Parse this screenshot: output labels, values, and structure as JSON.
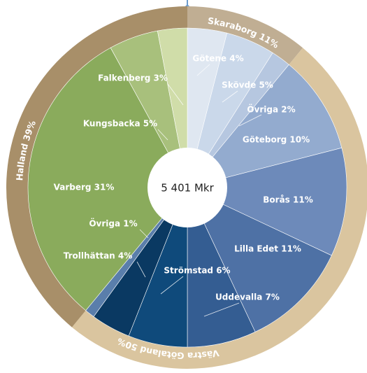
{
  "chart_data": {
    "type": "sunburst",
    "center_label": "5 401 Mkr",
    "inner": {
      "values": [
        4,
        5,
        2,
        10,
        11,
        11,
        7,
        6,
        4,
        1,
        31,
        5,
        3
      ],
      "value_labels": [
        "Götene 4%",
        "Skövde 5%",
        "Övriga 2%",
        "Göteborg 10%",
        "Borås 11%",
        "Lilla Edet 11%",
        "Uddevalla 7%",
        "Strömstad 6%",
        "Trollhättan 4%",
        "Övriga 1%",
        "Varberg 31%",
        "Kungsbacka 5%",
        "Falkenberg 3%"
      ],
      "colors": [
        "#dfe7f1",
        "#cad8ea",
        "#b6c7e0",
        "#93abcf",
        "#6d8aba",
        "#4e71a5",
        "#345d92",
        "#0f4a7b",
        "#0a3962",
        "#5a7eab",
        "#8aab5c",
        "#a8c07c",
        "#d0dda9"
      ]
    },
    "outer": {
      "values": [
        11,
        50,
        39
      ],
      "value_labels": [
        "Skaraborg 11%",
        "Västra Götaland 50%",
        "Halland 39%"
      ],
      "colors": [
        "#c0ae93",
        "#dac59f",
        "#a88f69"
      ]
    }
  }
}
